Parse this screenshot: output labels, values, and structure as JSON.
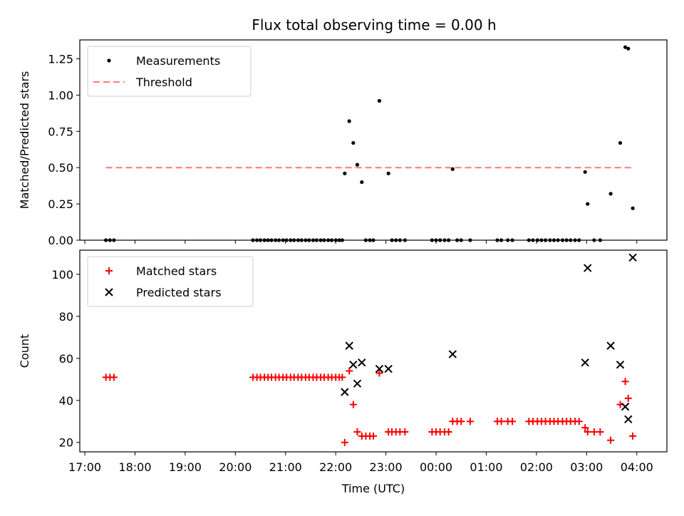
{
  "figure": {
    "title": "Flux total observing time = 0.00 h"
  },
  "chart_data": [
    {
      "type": "scatter",
      "panel": "top",
      "ylabel": "Matched/Predicted stars",
      "xlabel": "",
      "xlim": [
        16.9,
        28.6
      ],
      "ylim": [
        0.0,
        1.38
      ],
      "yticks": [
        0.0,
        0.25,
        0.5,
        0.75,
        1.0,
        1.25
      ],
      "ytick_labels": [
        "0.00",
        "0.25",
        "0.50",
        "0.75",
        "1.00",
        "1.25"
      ],
      "xticks": [
        17,
        18,
        19,
        20,
        21,
        22,
        23,
        24,
        25,
        26,
        27,
        28
      ],
      "legend": {
        "placement": "top-left",
        "entries": [
          "Measurements",
          "Threshold"
        ]
      },
      "series": [
        {
          "name": "Measurements",
          "marker": "dot",
          "color": "#000000",
          "points": [
            [
              17.42,
              0
            ],
            [
              17.5,
              0
            ],
            [
              17.58,
              0
            ],
            [
              20.35,
              0
            ],
            [
              20.43,
              0
            ],
            [
              20.5,
              0
            ],
            [
              20.58,
              0
            ],
            [
              20.65,
              0
            ],
            [
              20.72,
              0
            ],
            [
              20.8,
              0
            ],
            [
              20.87,
              0
            ],
            [
              20.95,
              0
            ],
            [
              21.02,
              0
            ],
            [
              21.1,
              0
            ],
            [
              21.17,
              0
            ],
            [
              21.25,
              0
            ],
            [
              21.32,
              0
            ],
            [
              21.4,
              0
            ],
            [
              21.47,
              0
            ],
            [
              21.55,
              0
            ],
            [
              21.62,
              0
            ],
            [
              21.7,
              0
            ],
            [
              21.77,
              0
            ],
            [
              21.85,
              0
            ],
            [
              21.92,
              0
            ],
            [
              22.0,
              0
            ],
            [
              22.07,
              0
            ],
            [
              22.13,
              0
            ],
            [
              22.18,
              0.46
            ],
            [
              22.27,
              0.82
            ],
            [
              22.35,
              0.67
            ],
            [
              22.43,
              0.52
            ],
            [
              22.52,
              0.4
            ],
            [
              22.6,
              0
            ],
            [
              22.68,
              0
            ],
            [
              22.75,
              0
            ],
            [
              22.87,
              0.96
            ],
            [
              23.05,
              0.46
            ],
            [
              23.12,
              0
            ],
            [
              23.2,
              0
            ],
            [
              23.28,
              0
            ],
            [
              23.38,
              0
            ],
            [
              23.92,
              0
            ],
            [
              24.0,
              0
            ],
            [
              24.08,
              0
            ],
            [
              24.17,
              0
            ],
            [
              24.25,
              0
            ],
            [
              24.33,
              0.49
            ],
            [
              24.42,
              0
            ],
            [
              24.5,
              0
            ],
            [
              24.68,
              0
            ],
            [
              25.22,
              0
            ],
            [
              25.3,
              0
            ],
            [
              25.43,
              0
            ],
            [
              25.52,
              0
            ],
            [
              25.85,
              0
            ],
            [
              25.93,
              0
            ],
            [
              26.02,
              0
            ],
            [
              26.1,
              0
            ],
            [
              26.18,
              0
            ],
            [
              26.27,
              0
            ],
            [
              26.35,
              0
            ],
            [
              26.43,
              0
            ],
            [
              26.52,
              0
            ],
            [
              26.6,
              0
            ],
            [
              26.68,
              0
            ],
            [
              26.77,
              0
            ],
            [
              26.85,
              0
            ],
            [
              26.97,
              0.47
            ],
            [
              27.02,
              0.25
            ],
            [
              27.15,
              0
            ],
            [
              27.27,
              0
            ],
            [
              27.48,
              0.32
            ],
            [
              27.67,
              0.67
            ],
            [
              27.77,
              1.33
            ],
            [
              27.83,
              1.32
            ],
            [
              27.92,
              0.22
            ]
          ]
        },
        {
          "name": "Threshold",
          "marker": "dashed-line",
          "color": "#ff7f7f",
          "points": [
            [
              17.42,
              0.5
            ],
            [
              27.92,
              0.5
            ]
          ]
        }
      ]
    },
    {
      "type": "scatter",
      "panel": "bottom",
      "ylabel": "Count",
      "xlabel": "Time (UTC)",
      "xlim": [
        16.9,
        28.6
      ],
      "ylim": [
        15.5,
        111.5
      ],
      "yticks": [
        20,
        40,
        60,
        80,
        100
      ],
      "ytick_labels": [
        "20",
        "40",
        "60",
        "80",
        "100"
      ],
      "xticks": [
        17,
        18,
        19,
        20,
        21,
        22,
        23,
        24,
        25,
        26,
        27,
        28
      ],
      "xtick_labels": [
        "17:00",
        "18:00",
        "19:00",
        "20:00",
        "21:00",
        "22:00",
        "23:00",
        "00:00",
        "01:00",
        "02:00",
        "03:00",
        "04:00"
      ],
      "legend": {
        "placement": "top-left",
        "entries": [
          "Matched stars",
          "Predicted stars"
        ]
      },
      "series": [
        {
          "name": "Matched stars",
          "marker": "plus",
          "color": "#ff0000",
          "points": [
            [
              17.42,
              51
            ],
            [
              17.5,
              51
            ],
            [
              17.58,
              51
            ],
            [
              20.35,
              51
            ],
            [
              20.43,
              51
            ],
            [
              20.5,
              51
            ],
            [
              20.58,
              51
            ],
            [
              20.65,
              51
            ],
            [
              20.72,
              51
            ],
            [
              20.8,
              51
            ],
            [
              20.87,
              51
            ],
            [
              20.95,
              51
            ],
            [
              21.02,
              51
            ],
            [
              21.1,
              51
            ],
            [
              21.17,
              51
            ],
            [
              21.25,
              51
            ],
            [
              21.32,
              51
            ],
            [
              21.4,
              51
            ],
            [
              21.47,
              51
            ],
            [
              21.55,
              51
            ],
            [
              21.62,
              51
            ],
            [
              21.7,
              51
            ],
            [
              21.77,
              51
            ],
            [
              21.85,
              51
            ],
            [
              21.92,
              51
            ],
            [
              22.0,
              51
            ],
            [
              22.07,
              51
            ],
            [
              22.13,
              51
            ],
            [
              22.18,
              20
            ],
            [
              22.27,
              54
            ],
            [
              22.35,
              38
            ],
            [
              22.43,
              25
            ],
            [
              22.52,
              23
            ],
            [
              22.6,
              23
            ],
            [
              22.68,
              23
            ],
            [
              22.75,
              23
            ],
            [
              22.87,
              53
            ],
            [
              23.05,
              25
            ],
            [
              23.12,
              25
            ],
            [
              23.2,
              25
            ],
            [
              23.28,
              25
            ],
            [
              23.38,
              25
            ],
            [
              23.92,
              25
            ],
            [
              24.0,
              25
            ],
            [
              24.08,
              25
            ],
            [
              24.17,
              25
            ],
            [
              24.25,
              25
            ],
            [
              24.33,
              30
            ],
            [
              24.42,
              30
            ],
            [
              24.5,
              30
            ],
            [
              24.68,
              30
            ],
            [
              25.22,
              30
            ],
            [
              25.3,
              30
            ],
            [
              25.43,
              30
            ],
            [
              25.52,
              30
            ],
            [
              25.85,
              30
            ],
            [
              25.93,
              30
            ],
            [
              26.02,
              30
            ],
            [
              26.1,
              30
            ],
            [
              26.18,
              30
            ],
            [
              26.27,
              30
            ],
            [
              26.35,
              30
            ],
            [
              26.43,
              30
            ],
            [
              26.52,
              30
            ],
            [
              26.6,
              30
            ],
            [
              26.68,
              30
            ],
            [
              26.77,
              30
            ],
            [
              26.85,
              30
            ],
            [
              26.97,
              27
            ],
            [
              27.02,
              25
            ],
            [
              27.15,
              25
            ],
            [
              27.27,
              25
            ],
            [
              27.48,
              21
            ],
            [
              27.67,
              38
            ],
            [
              27.77,
              49
            ],
            [
              27.83,
              41
            ],
            [
              27.92,
              23
            ]
          ]
        },
        {
          "name": "Predicted stars",
          "marker": "x",
          "color": "#000000",
          "points": [
            [
              22.18,
              44
            ],
            [
              22.27,
              66
            ],
            [
              22.35,
              57
            ],
            [
              22.43,
              48
            ],
            [
              22.52,
              58
            ],
            [
              22.87,
              55
            ],
            [
              23.05,
              55
            ],
            [
              24.33,
              62
            ],
            [
              26.97,
              58
            ],
            [
              27.02,
              103
            ],
            [
              27.48,
              66
            ],
            [
              27.67,
              57
            ],
            [
              27.77,
              37
            ],
            [
              27.83,
              31
            ],
            [
              27.92,
              108
            ]
          ]
        }
      ]
    }
  ]
}
